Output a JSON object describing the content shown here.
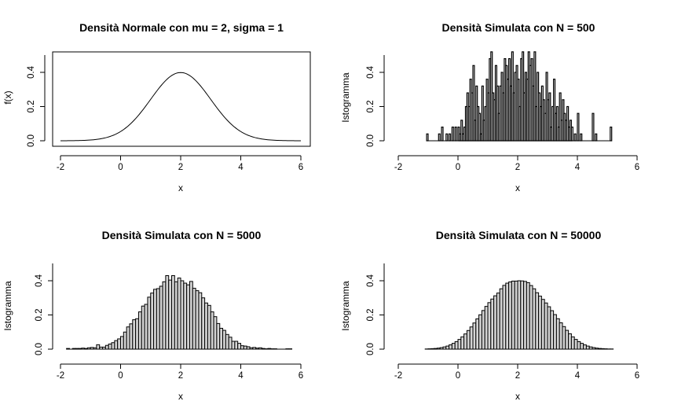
{
  "panels": [
    {
      "title": "Densità Normale con mu = 2, sigma = 1",
      "xlabel": "x",
      "ylabel": "f(x)",
      "xticks": [
        "-2",
        "0",
        "2",
        "4",
        "6"
      ],
      "yticks": [
        "0.0",
        "0.2",
        "0.4"
      ]
    },
    {
      "title": "Densità Simulata con N = 500",
      "xlabel": "x",
      "ylabel": "Istogramma",
      "xticks": [
        "-2",
        "0",
        "2",
        "4",
        "6"
      ],
      "yticks": [
        "0.0",
        "0.2",
        "0.4"
      ]
    },
    {
      "title": "Densità Simulata con N = 5000",
      "xlabel": "x",
      "ylabel": "Istogramma",
      "xticks": [
        "-2",
        "0",
        "2",
        "4",
        "6"
      ],
      "yticks": [
        "0.0",
        "0.2",
        "0.4"
      ]
    },
    {
      "title": "Densità Simulata con N = 50000",
      "xlabel": "x",
      "ylabel": "Istogramma",
      "xticks": [
        "-2",
        "0",
        "2",
        "4",
        "6"
      ],
      "yticks": [
        "0.0",
        "0.2",
        "0.4"
      ]
    }
  ],
  "chart_data": [
    {
      "type": "line",
      "title": "Densità Normale con mu = 2, sigma = 1",
      "xlabel": "x",
      "ylabel": "f(x)",
      "xlim": [
        -2,
        6
      ],
      "ylim": [
        0,
        0.5
      ],
      "function": "normal_pdf",
      "mean": 2,
      "sd": 1,
      "x": [
        -2,
        -1.5,
        -1,
        -0.5,
        0,
        0.5,
        1,
        1.5,
        2,
        2.5,
        3,
        3.5,
        4,
        4.5,
        5,
        5.5,
        6
      ],
      "y": [
        0.0001,
        0.0009,
        0.0044,
        0.0175,
        0.054,
        0.1295,
        0.242,
        0.3521,
        0.3989,
        0.3521,
        0.242,
        0.1295,
        0.054,
        0.0175,
        0.0044,
        0.0009,
        0.0001
      ]
    },
    {
      "type": "bar",
      "title": "Densità Simulata con N = 500",
      "xlabel": "x",
      "ylabel": "Istogramma",
      "xlim": [
        -2,
        6
      ],
      "ylim": [
        0,
        0.5
      ],
      "bin_width": 0.05,
      "bins_start": [
        -1.05,
        -0.65,
        -0.55,
        -0.4,
        -0.3,
        -0.2,
        -0.1,
        0.0,
        0.05,
        0.1,
        0.15,
        0.2,
        0.25,
        0.3,
        0.35,
        0.4,
        0.45,
        0.5,
        0.55,
        0.6,
        0.65,
        0.7,
        0.75,
        0.8,
        0.85,
        0.9,
        0.95,
        1.0,
        1.05,
        1.1,
        1.15,
        1.2,
        1.25,
        1.3,
        1.35,
        1.4,
        1.45,
        1.5,
        1.55,
        1.6,
        1.65,
        1.7,
        1.75,
        1.8,
        1.85,
        1.9,
        1.95,
        2.0,
        2.05,
        2.1,
        2.15,
        2.2,
        2.25,
        2.3,
        2.35,
        2.4,
        2.45,
        2.5,
        2.55,
        2.6,
        2.65,
        2.7,
        2.75,
        2.8,
        2.85,
        2.9,
        2.95,
        3.0,
        3.05,
        3.1,
        3.15,
        3.2,
        3.25,
        3.3,
        3.35,
        3.4,
        3.45,
        3.5,
        3.55,
        3.6,
        3.65,
        3.7,
        3.75,
        3.8,
        3.9,
        4.0,
        4.1,
        4.5,
        4.6,
        5.1
      ],
      "values": [
        0.04,
        0.04,
        0.08,
        0.04,
        0.04,
        0.08,
        0.08,
        0.08,
        0.04,
        0.12,
        0.04,
        0.08,
        0.2,
        0.28,
        0.2,
        0.36,
        0.28,
        0.44,
        0.12,
        0.32,
        0.2,
        0.16,
        0.04,
        0.32,
        0.12,
        0.2,
        0.36,
        0.28,
        0.48,
        0.52,
        0.28,
        0.24,
        0.44,
        0.32,
        0.16,
        0.32,
        0.4,
        0.28,
        0.48,
        0.44,
        0.36,
        0.48,
        0.32,
        0.52,
        0.28,
        0.4,
        0.44,
        0.36,
        0.2,
        0.48,
        0.52,
        0.28,
        0.4,
        0.36,
        0.52,
        0.44,
        0.48,
        0.32,
        0.52,
        0.2,
        0.4,
        0.28,
        0.2,
        0.32,
        0.24,
        0.16,
        0.4,
        0.24,
        0.28,
        0.08,
        0.2,
        0.36,
        0.16,
        0.2,
        0.08,
        0.28,
        0.12,
        0.24,
        0.16,
        0.12,
        0.2,
        0.08,
        0.12,
        0.08,
        0.04,
        0.16,
        0.04,
        0.16,
        0.04,
        0.08
      ]
    },
    {
      "type": "bar",
      "title": "Densità Simulata con N = 5000",
      "xlabel": "x",
      "ylabel": "Istogramma",
      "xlim": [
        -2,
        6
      ],
      "ylim": [
        0,
        0.5
      ],
      "bin_width": 0.1,
      "bins_start": [
        -1.8,
        -1.7,
        -1.6,
        -1.5,
        -1.4,
        -1.3,
        -1.2,
        -1.1,
        -1.0,
        -0.9,
        -0.8,
        -0.7,
        -0.6,
        -0.5,
        -0.4,
        -0.3,
        -0.2,
        -0.1,
        0.0,
        0.1,
        0.2,
        0.3,
        0.4,
        0.5,
        0.6,
        0.7,
        0.8,
        0.9,
        1.0,
        1.1,
        1.2,
        1.3,
        1.4,
        1.5,
        1.6,
        1.7,
        1.8,
        1.9,
        2.0,
        2.1,
        2.2,
        2.3,
        2.4,
        2.5,
        2.6,
        2.7,
        2.8,
        2.9,
        3.0,
        3.1,
        3.2,
        3.3,
        3.4,
        3.5,
        3.6,
        3.7,
        3.8,
        3.9,
        4.0,
        4.1,
        4.2,
        4.3,
        4.4,
        4.5,
        4.6,
        4.7,
        4.8,
        4.9,
        5.0,
        5.1,
        5.2,
        5.3,
        5.4,
        5.5,
        5.6
      ],
      "values": [
        0.004,
        0.0,
        0.004,
        0.004,
        0.004,
        0.006,
        0.004,
        0.008,
        0.01,
        0.008,
        0.026,
        0.012,
        0.012,
        0.022,
        0.03,
        0.038,
        0.05,
        0.06,
        0.074,
        0.1,
        0.13,
        0.148,
        0.172,
        0.178,
        0.218,
        0.252,
        0.262,
        0.304,
        0.328,
        0.35,
        0.354,
        0.368,
        0.394,
        0.43,
        0.404,
        0.43,
        0.394,
        0.416,
        0.4,
        0.386,
        0.376,
        0.396,
        0.356,
        0.342,
        0.33,
        0.3,
        0.27,
        0.256,
        0.218,
        0.19,
        0.15,
        0.122,
        0.11,
        0.086,
        0.07,
        0.046,
        0.046,
        0.034,
        0.02,
        0.018,
        0.014,
        0.008,
        0.01,
        0.006,
        0.008,
        0.004,
        0.002,
        0.004,
        0.002,
        0.002,
        0.0,
        0.0,
        0.0,
        0.002,
        0.002
      ]
    },
    {
      "type": "bar",
      "title": "Densità Simulata con N = 50000",
      "xlabel": "x",
      "ylabel": "Istogramma",
      "xlim": [
        -2,
        6
      ],
      "ylim": [
        0,
        0.5
      ],
      "bin_width": 0.1,
      "bins_start": [
        -1.1,
        -1.0,
        -0.9,
        -0.8,
        -0.7,
        -0.6,
        -0.5,
        -0.4,
        -0.3,
        -0.2,
        -0.1,
        0.0,
        0.1,
        0.2,
        0.3,
        0.4,
        0.5,
        0.6,
        0.7,
        0.8,
        0.9,
        1.0,
        1.1,
        1.2,
        1.3,
        1.4,
        1.5,
        1.6,
        1.7,
        1.8,
        1.9,
        2.0,
        2.1,
        2.2,
        2.3,
        2.4,
        2.5,
        2.6,
        2.7,
        2.8,
        2.9,
        3.0,
        3.1,
        3.2,
        3.3,
        3.4,
        3.5,
        3.6,
        3.7,
        3.8,
        3.9,
        4.0,
        4.1,
        4.2,
        4.3,
        4.4,
        4.5,
        4.6,
        4.7,
        4.8,
        4.9,
        5.0,
        5.1
      ],
      "values": [
        0.001,
        0.002,
        0.003,
        0.004,
        0.006,
        0.009,
        0.013,
        0.018,
        0.025,
        0.034,
        0.044,
        0.057,
        0.072,
        0.089,
        0.109,
        0.13,
        0.153,
        0.177,
        0.201,
        0.226,
        0.25,
        0.272,
        0.293,
        0.312,
        0.328,
        0.353,
        0.373,
        0.386,
        0.393,
        0.398,
        0.398,
        0.4,
        0.399,
        0.396,
        0.389,
        0.372,
        0.353,
        0.33,
        0.31,
        0.291,
        0.27,
        0.248,
        0.225,
        0.202,
        0.178,
        0.154,
        0.132,
        0.11,
        0.09,
        0.072,
        0.057,
        0.044,
        0.034,
        0.025,
        0.018,
        0.013,
        0.009,
        0.006,
        0.004,
        0.003,
        0.002,
        0.001,
        0.001
      ]
    }
  ]
}
